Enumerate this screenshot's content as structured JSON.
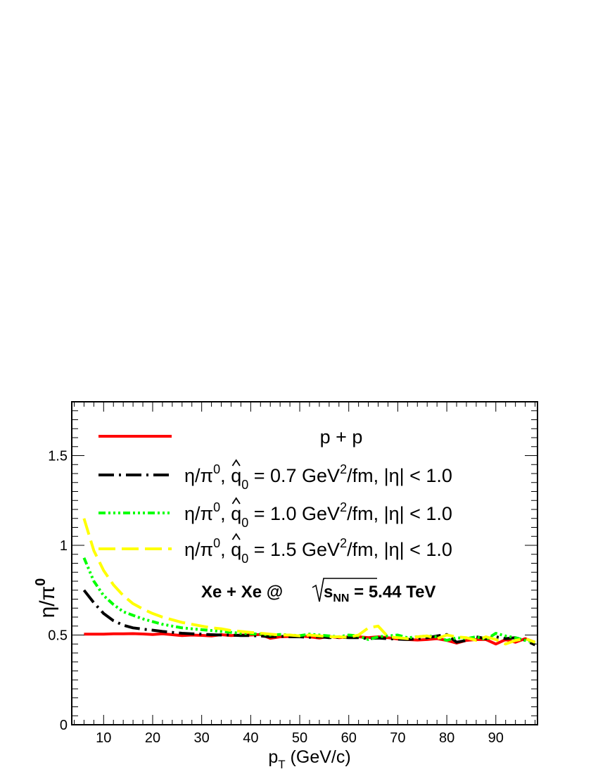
{
  "chart_data": {
    "type": "line",
    "xlabel": "p",
    "xlabel_sub": "T",
    "xlabel_unit": " (GeV/c)",
    "ylabel": "η/π",
    "ylabel_sup": "0",
    "xlim": [
      3.5,
      98.5
    ],
    "ylim": [
      0,
      1.8
    ],
    "x_ticks": [
      10,
      20,
      30,
      40,
      50,
      60,
      70,
      80,
      90
    ],
    "x_tick_labels": [
      "10",
      "20",
      "30",
      "40",
      "50",
      "60",
      "70",
      "80",
      "90"
    ],
    "y_ticks": [
      0,
      0.5,
      1,
      1.5
    ],
    "y_tick_labels": [
      "0",
      "0.5",
      "1",
      "1.5"
    ],
    "grid": false,
    "legend_position": "top",
    "annotation": {
      "prefix": "Xe + Xe @ ",
      "sym": "s",
      "sub": "NN",
      "suffix": " = 5.44 TeV"
    },
    "series": [
      {
        "name": "p + p",
        "legend": {
          "pre": "p + p"
        },
        "color": "#ff0000",
        "dash": "",
        "x": [
          6,
          8,
          10,
          12,
          14,
          16,
          18,
          20,
          22,
          24,
          26,
          28,
          30,
          32,
          34,
          36,
          38,
          40,
          42,
          44,
          46,
          48,
          50,
          52,
          54,
          56,
          58,
          60,
          62,
          64,
          66,
          68,
          70,
          72,
          74,
          76,
          78,
          80,
          82,
          84,
          86,
          88,
          90,
          92,
          94,
          96,
          98
        ],
        "y": [
          0.505,
          0.505,
          0.505,
          0.507,
          0.507,
          0.508,
          0.506,
          0.503,
          0.507,
          0.502,
          0.497,
          0.5,
          0.498,
          0.495,
          0.502,
          0.497,
          0.5,
          0.5,
          0.503,
          0.482,
          0.49,
          0.492,
          0.495,
          0.49,
          0.483,
          0.492,
          0.485,
          0.49,
          0.49,
          0.485,
          0.49,
          0.485,
          0.478,
          0.475,
          0.472,
          0.475,
          0.48,
          0.47,
          0.455,
          0.47,
          0.475,
          0.475,
          0.45,
          0.475,
          0.46,
          0.48,
          0.46
        ]
      },
      {
        "name": "eta/pi0 q0 0.7",
        "legend": {
          "pre": "η/π",
          "sup1": "0",
          "mid1": ", ",
          "hatsym": "q",
          "hatsub": "0",
          "mid2": " = 0.7 GeV",
          "sup2": "2",
          "post": "/fm, |η| < 1.0"
        },
        "color": "#000000",
        "dash": "22,7,3,7",
        "x": [
          6,
          8,
          10,
          12,
          14,
          16,
          18,
          20,
          22,
          24,
          26,
          28,
          30,
          32,
          34,
          36,
          38,
          40,
          42,
          44,
          46,
          48,
          50,
          52,
          54,
          56,
          58,
          60,
          62,
          64,
          66,
          68,
          70,
          72,
          74,
          76,
          78,
          80,
          82,
          84,
          86,
          88,
          90,
          92,
          94,
          96,
          98
        ],
        "y": [
          0.75,
          0.68,
          0.62,
          0.58,
          0.555,
          0.54,
          0.533,
          0.527,
          0.52,
          0.515,
          0.51,
          0.507,
          0.505,
          0.502,
          0.5,
          0.5,
          0.497,
          0.497,
          0.495,
          0.49,
          0.493,
          0.49,
          0.49,
          0.487,
          0.49,
          0.485,
          0.488,
          0.485,
          0.485,
          0.48,
          0.483,
          0.48,
          0.477,
          0.475,
          0.48,
          0.485,
          0.495,
          0.503,
          0.46,
          0.47,
          0.49,
          0.48,
          0.49,
          0.48,
          0.485,
          0.47,
          0.445
        ]
      },
      {
        "name": "eta/pi0 q0 1.0",
        "legend": {
          "pre": "η/π",
          "sup1": "0",
          "mid1": ", ",
          "hatsym": "q",
          "hatsub": "0",
          "mid2": " = 1.0 GeV",
          "sup2": "2",
          "post": "/fm, |η| < 1.0"
        },
        "color": "#00ff00",
        "dash": "10,4,3,4,3,4,3,4",
        "x": [
          6,
          8,
          10,
          12,
          14,
          16,
          18,
          20,
          22,
          24,
          26,
          28,
          30,
          32,
          34,
          36,
          38,
          40,
          42,
          44,
          46,
          48,
          50,
          52,
          54,
          56,
          58,
          60,
          62,
          64,
          66,
          68,
          70,
          72,
          74,
          76,
          78,
          80,
          82,
          84,
          86,
          88,
          90,
          92,
          94,
          96,
          98
        ],
        "y": [
          0.93,
          0.8,
          0.72,
          0.67,
          0.63,
          0.61,
          0.59,
          0.575,
          0.56,
          0.55,
          0.54,
          0.535,
          0.53,
          0.525,
          0.52,
          0.515,
          0.51,
          0.507,
          0.505,
          0.5,
          0.503,
          0.5,
          0.497,
          0.505,
          0.5,
          0.495,
          0.49,
          0.5,
          0.495,
          0.475,
          0.49,
          0.495,
          0.5,
          0.485,
          0.49,
          0.495,
          0.49,
          0.47,
          0.485,
          0.48,
          0.49,
          0.475,
          0.51,
          0.495,
          0.485,
          0.47,
          0.46
        ]
      },
      {
        "name": "eta/pi0 q0 1.5",
        "legend": {
          "pre": "η/π",
          "sup1": "0",
          "mid1": ", ",
          "hatsym": "q",
          "hatsub": "0",
          "mid2": " = 1.5 GeV",
          "sup2": "2",
          "post": "/fm, |η| < 1.0"
        },
        "color": "#ffff00",
        "dash": "24,9",
        "x": [
          6,
          8,
          10,
          12,
          14,
          16,
          18,
          20,
          22,
          24,
          26,
          28,
          30,
          32,
          34,
          36,
          38,
          40,
          42,
          44,
          46,
          48,
          50,
          52,
          54,
          56,
          58,
          60,
          62,
          64,
          66,
          68,
          70,
          72,
          74,
          76,
          78,
          80,
          82,
          84,
          86,
          88,
          90,
          92,
          94,
          96,
          98
        ],
        "y": [
          1.15,
          0.97,
          0.86,
          0.78,
          0.72,
          0.675,
          0.645,
          0.62,
          0.6,
          0.585,
          0.57,
          0.56,
          0.55,
          0.54,
          0.535,
          0.525,
          0.52,
          0.515,
          0.51,
          0.505,
          0.5,
          0.5,
          0.495,
          0.5,
          0.495,
          0.49,
          0.49,
          0.487,
          0.5,
          0.54,
          0.55,
          0.49,
          0.485,
          0.48,
          0.49,
          0.495,
          0.48,
          0.5,
          0.49,
          0.485,
          0.47,
          0.49,
          0.475,
          0.45,
          0.47,
          0.48,
          0.46
        ]
      }
    ]
  }
}
